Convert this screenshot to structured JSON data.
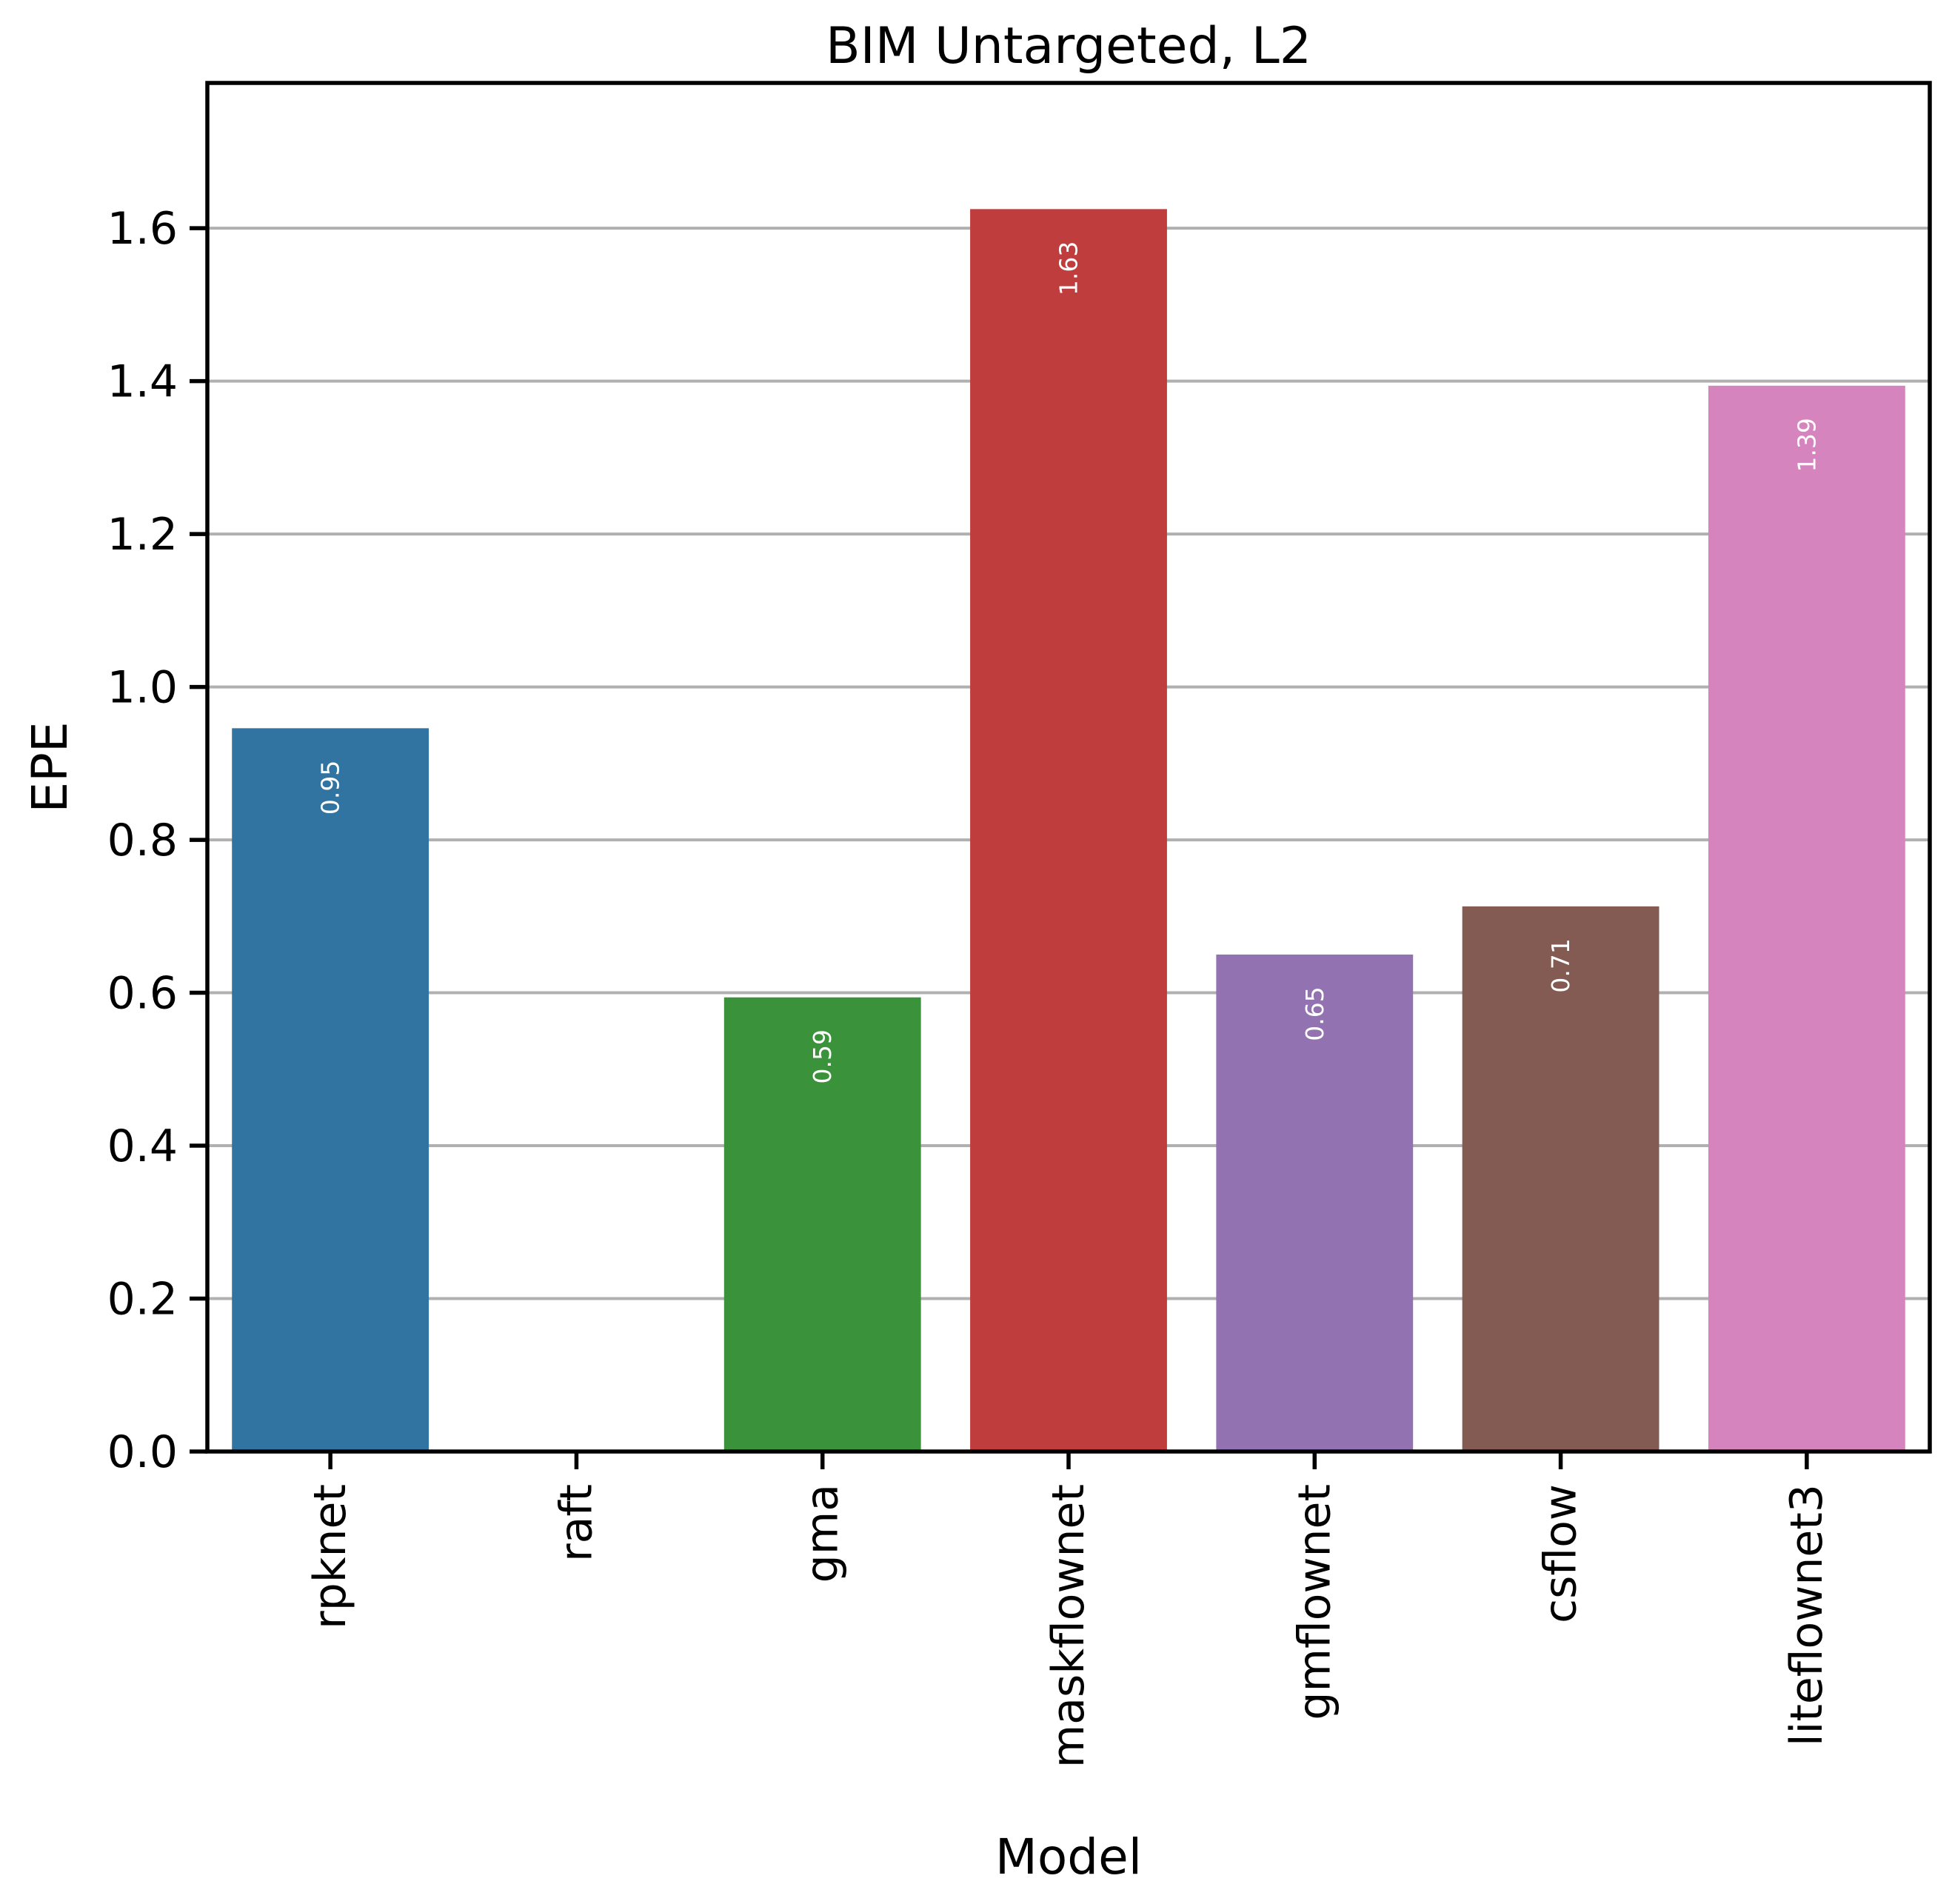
{
  "chart_data": {
    "type": "bar",
    "title": "BIM Untargeted, L2",
    "xlabel": "Model",
    "ylabel": "EPE",
    "categories": [
      "rpknet",
      "raft",
      "gma",
      "maskflownet",
      "gmflownet",
      "csflow",
      "liteflownet3"
    ],
    "values": [
      0.946,
      0,
      0.594,
      1.625,
      0.65,
      0.713,
      1.394
    ],
    "value_labels": [
      "0.95",
      "",
      "0.59",
      "1.63",
      "0.65",
      "0.71",
      "1.39"
    ],
    "colors": [
      "#3274a1",
      "#ffffff",
      "#3a923a",
      "#c03d3e",
      "#9372b2",
      "#845b53",
      "#d684bd"
    ],
    "ylim": [
      0,
      1.79
    ],
    "yticks": [
      "0.0",
      "0.2",
      "0.4",
      "0.6",
      "0.8",
      "1.0",
      "1.2",
      "1.4",
      "1.6"
    ],
    "grid": "horizontal",
    "legend": "none"
  }
}
